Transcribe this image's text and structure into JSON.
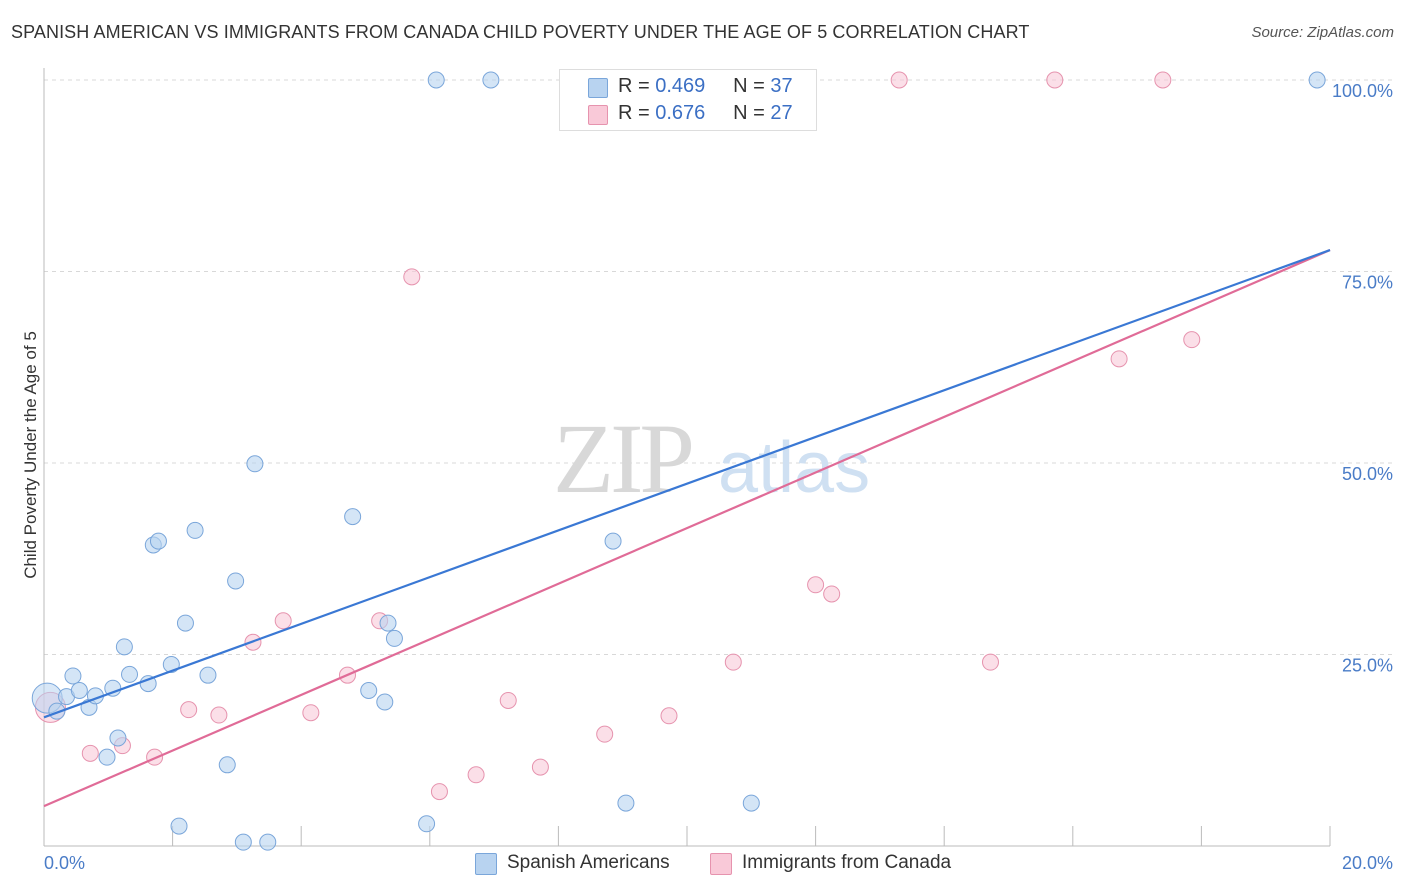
{
  "title": "SPANISH AMERICAN VS IMMIGRANTS FROM CANADA CHILD POVERTY UNDER THE AGE OF 5 CORRELATION CHART",
  "source": "Source: ZipAtlas.com",
  "watermark": {
    "zip": "ZIP",
    "atlas": "atlas"
  },
  "legend": {
    "r_label": "R =",
    "n_label": "N =",
    "series1": {
      "r": "0.469",
      "n": "37"
    },
    "series2": {
      "r": "0.676",
      "n": "27"
    }
  },
  "colors": {
    "blue_fill": "#b8d3f0",
    "blue_stroke": "#7aa6da",
    "blue_line": "#3a78d4",
    "pink_fill": "#f9c9d8",
    "pink_stroke": "#e693ae",
    "pink_line": "#e06b97",
    "tick_text": "#4a7cc7",
    "grid": "#d8d8d8"
  },
  "chart_data": {
    "type": "scatter",
    "title": "SPANISH AMERICAN VS IMMIGRANTS FROM CANADA CHILD POVERTY UNDER THE AGE OF 5 CORRELATION CHART",
    "xlabel": "",
    "ylabel": "Child Poverty Under the Age of 5",
    "xlim": [
      0,
      20
    ],
    "ylim": [
      0,
      100
    ],
    "x_tick_labels": [
      "0.0%",
      "20.0%"
    ],
    "y_tick_labels": [
      "25.0%",
      "50.0%",
      "75.0%",
      "100.0%"
    ],
    "y_tick_values": [
      25,
      50,
      75,
      100
    ],
    "grid": "horizontal dashed",
    "legend_position": "top-center",
    "series": [
      {
        "name": "Spanish Americans",
        "color": "#7aa6da",
        "r": 0.469,
        "n": 37,
        "trend": {
          "x": [
            0,
            20
          ],
          "y": [
            16.8,
            77.8
          ]
        },
        "points": [
          {
            "x": 0.05,
            "y": 19.3,
            "big": true
          },
          {
            "x": 0.2,
            "y": 17.6
          },
          {
            "x": 0.35,
            "y": 19.5
          },
          {
            "x": 0.45,
            "y": 22.2
          },
          {
            "x": 0.55,
            "y": 20.3
          },
          {
            "x": 0.7,
            "y": 18.1
          },
          {
            "x": 0.8,
            "y": 19.6
          },
          {
            "x": 0.98,
            "y": 11.6
          },
          {
            "x": 1.07,
            "y": 20.6
          },
          {
            "x": 1.15,
            "y": 14.1
          },
          {
            "x": 1.25,
            "y": 26.0
          },
          {
            "x": 1.33,
            "y": 22.4
          },
          {
            "x": 1.62,
            "y": 21.2
          },
          {
            "x": 1.7,
            "y": 39.3
          },
          {
            "x": 1.78,
            "y": 39.8
          },
          {
            "x": 1.98,
            "y": 23.7
          },
          {
            "x": 2.2,
            "y": 29.1
          },
          {
            "x": 2.35,
            "y": 41.2
          },
          {
            "x": 2.55,
            "y": 22.3
          },
          {
            "x": 2.85,
            "y": 10.6
          },
          {
            "x": 2.98,
            "y": 34.6
          },
          {
            "x": 3.28,
            "y": 49.9
          },
          {
            "x": 2.1,
            "y": 2.6
          },
          {
            "x": 3.1,
            "y": 0.5
          },
          {
            "x": 3.48,
            "y": 0.5
          },
          {
            "x": 4.8,
            "y": 43.0
          },
          {
            "x": 5.05,
            "y": 20.3
          },
          {
            "x": 5.3,
            "y": 18.8
          },
          {
            "x": 5.35,
            "y": 29.1
          },
          {
            "x": 5.45,
            "y": 27.1
          },
          {
            "x": 5.95,
            "y": 2.9
          },
          {
            "x": 6.1,
            "y": 100.0
          },
          {
            "x": 6.95,
            "y": 100.0
          },
          {
            "x": 8.85,
            "y": 39.8
          },
          {
            "x": 9.05,
            "y": 5.6
          },
          {
            "x": 11.0,
            "y": 5.6
          },
          {
            "x": 19.8,
            "y": 100.0
          }
        ]
      },
      {
        "name": "Immigrants from Canada",
        "color": "#e693ae",
        "r": 0.676,
        "n": 27,
        "trend": {
          "x": [
            0,
            20
          ],
          "y": [
            5.2,
            77.8
          ]
        },
        "points": [
          {
            "x": 0.1,
            "y": 18.1,
            "big": true
          },
          {
            "x": 0.72,
            "y": 12.1
          },
          {
            "x": 1.22,
            "y": 13.1
          },
          {
            "x": 1.72,
            "y": 11.6
          },
          {
            "x": 2.25,
            "y": 17.8
          },
          {
            "x": 2.72,
            "y": 17.1
          },
          {
            "x": 3.25,
            "y": 26.6
          },
          {
            "x": 3.72,
            "y": 29.4
          },
          {
            "x": 4.15,
            "y": 17.4
          },
          {
            "x": 4.72,
            "y": 22.3
          },
          {
            "x": 5.22,
            "y": 29.4
          },
          {
            "x": 5.72,
            "y": 74.3
          },
          {
            "x": 6.15,
            "y": 7.1
          },
          {
            "x": 6.72,
            "y": 9.3
          },
          {
            "x": 7.22,
            "y": 19.0
          },
          {
            "x": 7.72,
            "y": 10.3
          },
          {
            "x": 8.72,
            "y": 14.6
          },
          {
            "x": 9.72,
            "y": 17.0
          },
          {
            "x": 10.72,
            "y": 24.0
          },
          {
            "x": 12.0,
            "y": 34.1
          },
          {
            "x": 12.25,
            "y": 32.9
          },
          {
            "x": 13.3,
            "y": 100.0
          },
          {
            "x": 14.72,
            "y": 24.0
          },
          {
            "x": 15.72,
            "y": 100.0
          },
          {
            "x": 16.72,
            "y": 63.6
          },
          {
            "x": 17.4,
            "y": 100.0
          },
          {
            "x": 17.85,
            "y": 66.1
          }
        ]
      }
    ]
  },
  "bottom_legend": {
    "series1": "Spanish Americans",
    "series2": "Immigrants from Canada"
  }
}
